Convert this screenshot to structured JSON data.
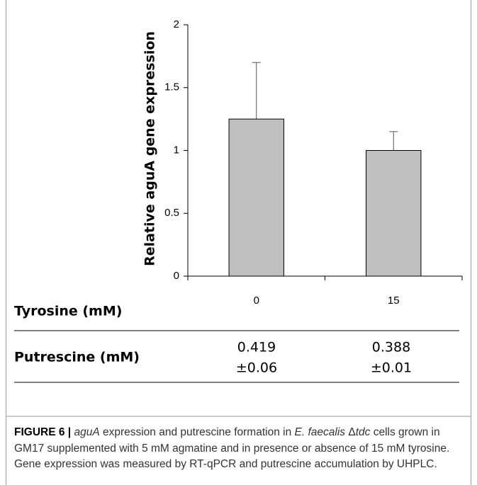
{
  "chart_data": {
    "type": "bar",
    "y_label": "Relative aguA gene expression",
    "x_label": "Tyrosine (mM)",
    "categories": [
      "0",
      "15"
    ],
    "values": [
      1.25,
      1.0
    ],
    "errors": [
      0.45,
      0.15
    ],
    "color": "#bfbfbf",
    "ylim": [
      0,
      2
    ],
    "yticks": [
      0,
      0.5,
      1,
      1.5,
      2
    ]
  },
  "table": {
    "row_label": "Putrescine (mM)",
    "cells": [
      [
        "0.419",
        "±0.06"
      ],
      [
        "0.388",
        "±0.01"
      ]
    ]
  },
  "caption": {
    "label": "FIGURE 6 |",
    "runs": [
      {
        "text": "aguA",
        "italic": true
      },
      {
        "text": " expression and putrescine formation in ",
        "italic": false
      },
      {
        "text": "E. faecalis",
        "italic": true
      },
      {
        "text": " Δ",
        "italic": false
      },
      {
        "text": "tdc",
        "italic": true
      },
      {
        "text": " cells grown in GM17 supplemented with 5 mM agmatine and in presence or absence of 15 mM tyrosine. Gene expression was measured by RT-qPCR and putrescine accumulation by UHPLC.",
        "italic": false
      }
    ]
  }
}
